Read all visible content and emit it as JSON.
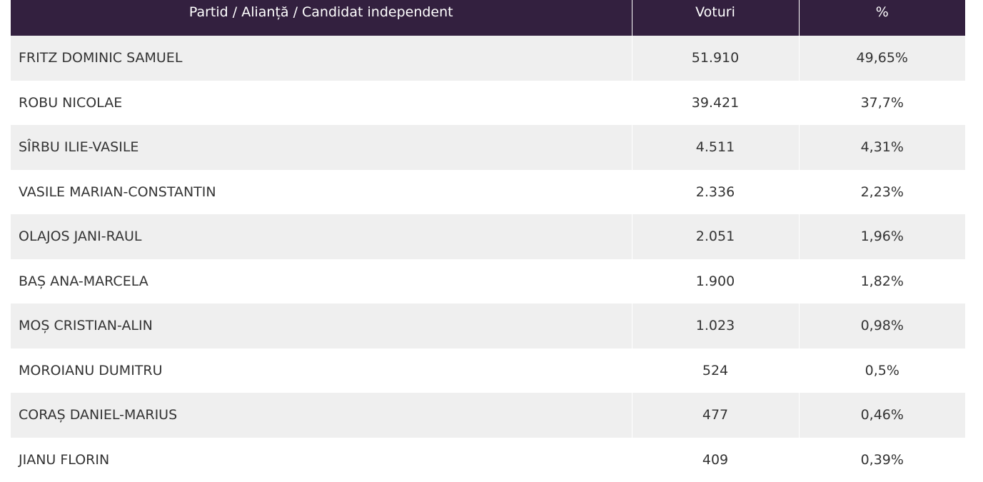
{
  "table": {
    "headers": {
      "name": "Partid / Alianță / Candidat independent",
      "votes": "Voturi",
      "percent": "%"
    },
    "rows": [
      {
        "name": "FRITZ DOMINIC SAMUEL",
        "votes": "51.910",
        "percent": "49,65%"
      },
      {
        "name": "ROBU NICOLAE",
        "votes": "39.421",
        "percent": "37,7%"
      },
      {
        "name": "SÎRBU ILIE-VASILE",
        "votes": "4.511",
        "percent": "4,31%"
      },
      {
        "name": "VASILE MARIAN-CONSTANTIN",
        "votes": "2.336",
        "percent": "2,23%"
      },
      {
        "name": "OLAJOS JANI-RAUL",
        "votes": "2.051",
        "percent": "1,96%"
      },
      {
        "name": "BAȘ ANA-MARCELA",
        "votes": "1.900",
        "percent": "1,82%"
      },
      {
        "name": "MOȘ CRISTIAN-ALIN",
        "votes": "1.023",
        "percent": "0,98%"
      },
      {
        "name": "MOROIANU DUMITRU",
        "votes": "524",
        "percent": "0,5%"
      },
      {
        "name": "CORAȘ DANIEL-MARIUS",
        "votes": "477",
        "percent": "0,46%"
      },
      {
        "name": "JIANU FLORIN",
        "votes": "409",
        "percent": "0,39%"
      }
    ]
  },
  "colors": {
    "header_bg": "#33203f",
    "header_text": "#ffffff",
    "row_alt_bg": "#efefef",
    "row_bg": "#ffffff",
    "cell_text": "#333333"
  }
}
